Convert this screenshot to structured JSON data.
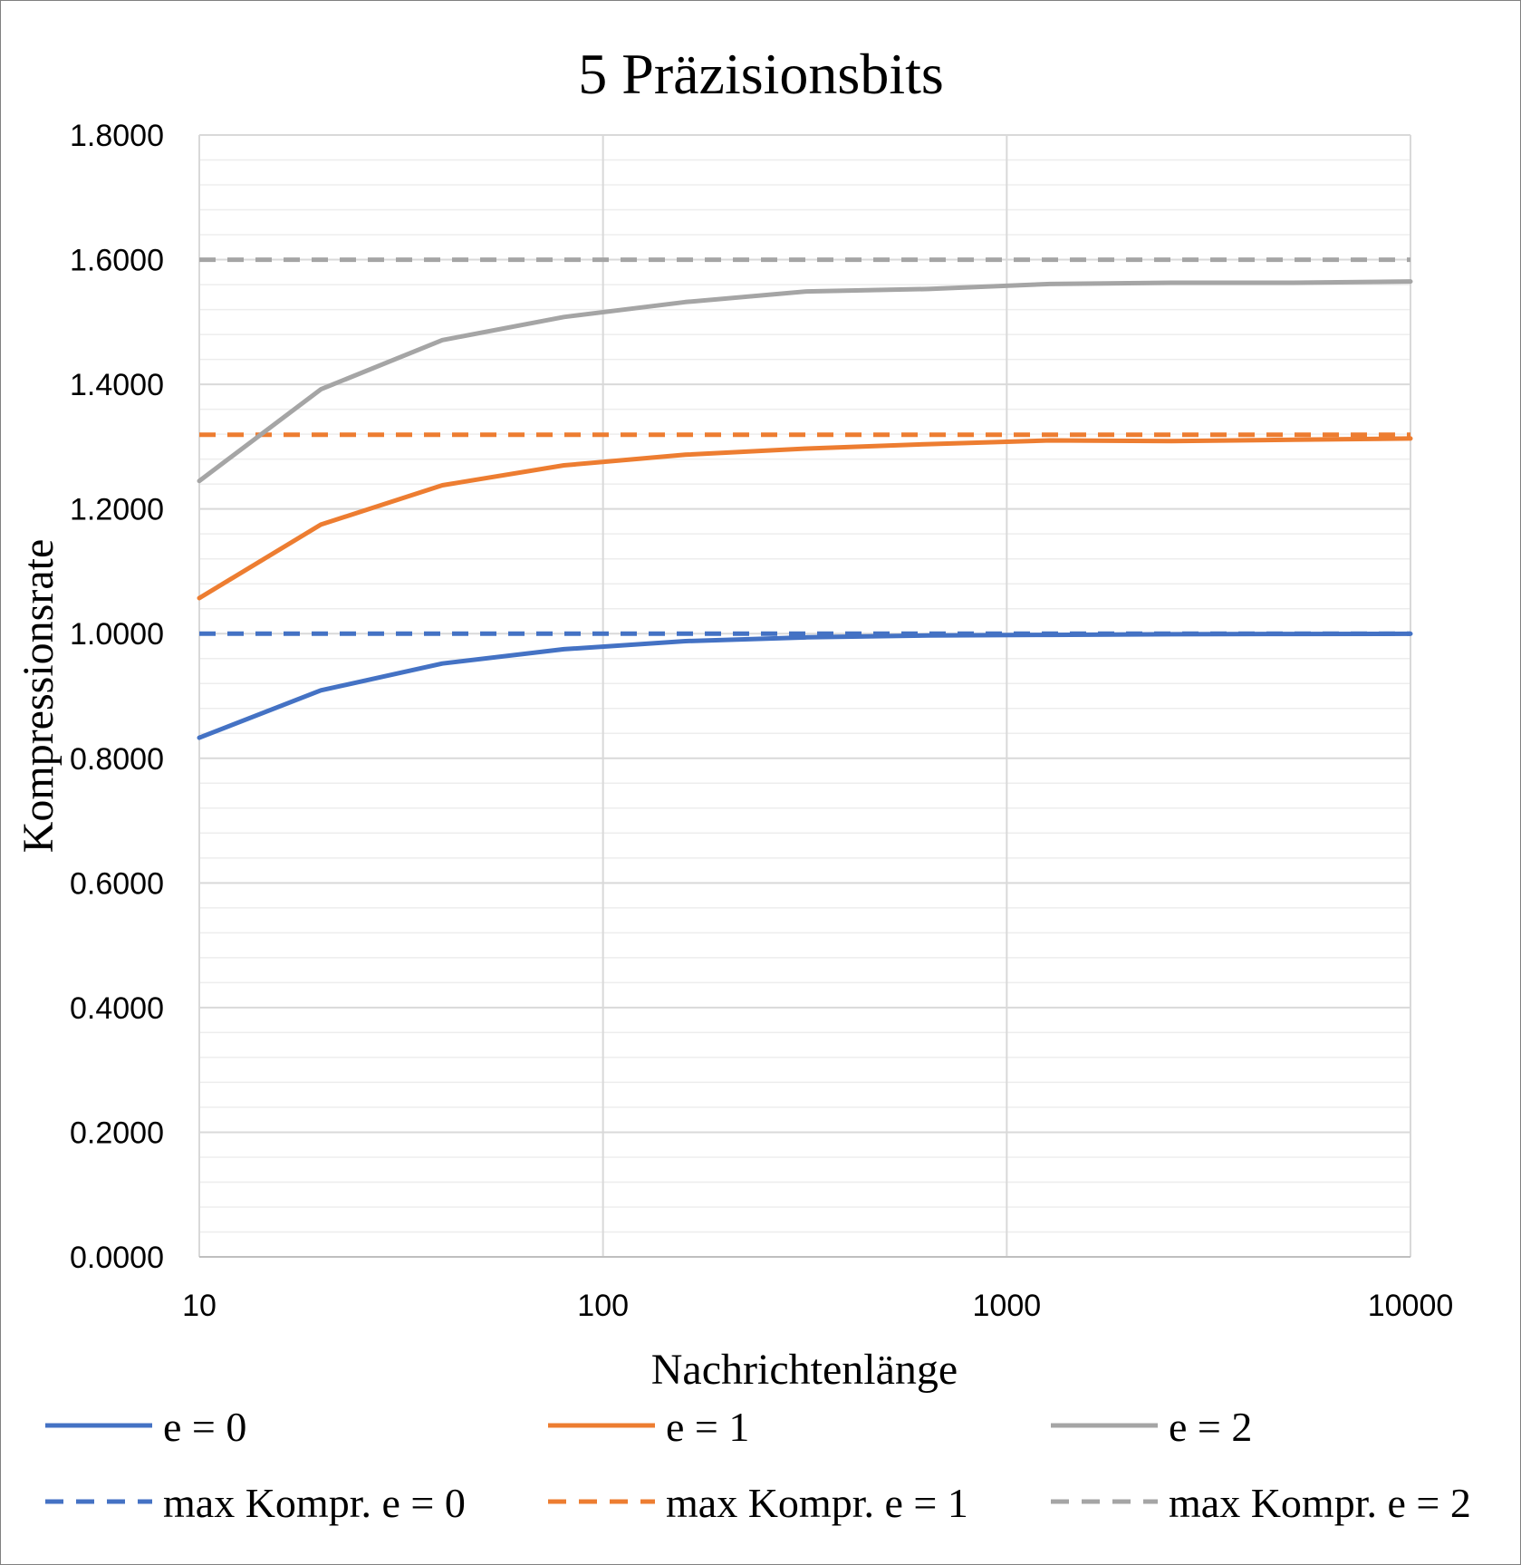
{
  "chart_data": {
    "type": "line",
    "title": "5 Präzisionsbits",
    "xlabel": "Nachrichtenlänge",
    "ylabel": "Kompressionsrate",
    "x_scale": "log",
    "xlim": [
      10,
      10000
    ],
    "ylim": [
      0,
      1.8
    ],
    "x_ticks": [
      "10",
      "100",
      "1000",
      "10000"
    ],
    "y_ticks": [
      "0.0000",
      "0.2000",
      "0.4000",
      "0.6000",
      "0.8000",
      "1.0000",
      "1.2000",
      "1.4000",
      "1.6000",
      "1.8000"
    ],
    "grid": true,
    "legend_position": "bottom",
    "series": [
      {
        "name": "e = 0",
        "color": "#4472C4",
        "dash": false,
        "x": [
          10,
          20,
          40,
          80,
          160,
          320,
          640,
          1280,
          2560,
          5120,
          10000
        ],
        "y": [
          0.833,
          0.909,
          0.952,
          0.975,
          0.988,
          0.994,
          0.997,
          0.998,
          0.999,
          0.9995,
          0.9998
        ]
      },
      {
        "name": "e = 1",
        "color": "#ED7D31",
        "dash": false,
        "x": [
          10,
          20,
          40,
          80,
          160,
          320,
          640,
          1280,
          2560,
          5120,
          10000
        ],
        "y": [
          1.057,
          1.175,
          1.238,
          1.27,
          1.287,
          1.297,
          1.304,
          1.31,
          1.309,
          1.311,
          1.313
        ]
      },
      {
        "name": "e = 2",
        "color": "#A5A5A5",
        "dash": false,
        "x": [
          10,
          20,
          40,
          80,
          160,
          320,
          640,
          1280,
          2560,
          5120,
          10000
        ],
        "y": [
          1.245,
          1.392,
          1.471,
          1.508,
          1.532,
          1.549,
          1.553,
          1.561,
          1.563,
          1.563,
          1.565
        ]
      },
      {
        "name": "max Kompr. e = 0",
        "color": "#4472C4",
        "dash": true,
        "x": [
          10,
          10000
        ],
        "y": [
          1.0,
          1.0
        ]
      },
      {
        "name": "max Kompr. e = 1",
        "color": "#ED7D31",
        "dash": true,
        "x": [
          10,
          10000
        ],
        "y": [
          1.319,
          1.319
        ]
      },
      {
        "name": "max Kompr. e = 2",
        "color": "#A5A5A5",
        "dash": true,
        "x": [
          10,
          10000
        ],
        "y": [
          1.6,
          1.6
        ]
      }
    ]
  }
}
